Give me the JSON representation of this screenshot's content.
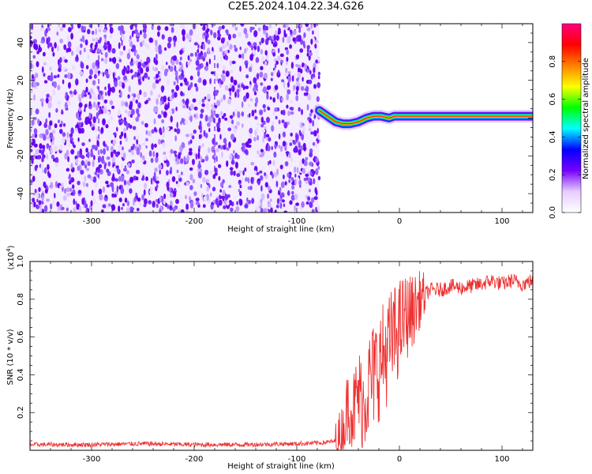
{
  "title": "C2E5.2024.104.22.34.G26",
  "chart_data": [
    {
      "type": "heatmap",
      "xlabel": "Height of straight line (km)",
      "ylabel": "Frequency (Hz)",
      "xlim": [
        -360,
        130
      ],
      "ylim": [
        -50,
        50
      ],
      "xticks": [
        -300,
        -200,
        -100,
        0,
        100
      ],
      "yticks": [
        -40,
        -20,
        0,
        20,
        40
      ],
      "noise_region_x": [
        -360,
        -78
      ],
      "signal_trace": {
        "x": [
          -78,
          -70,
          -62,
          -55,
          -48,
          -40,
          -32,
          -25,
          -18,
          -10,
          -5,
          0,
          20,
          40,
          60,
          80,
          100,
          130
        ],
        "y": [
          4,
          1,
          -2,
          -3,
          -3,
          -2,
          0,
          1,
          1,
          0,
          1,
          1,
          1,
          1,
          1,
          1,
          1,
          1
        ]
      },
      "colorbar": {
        "label": "Normalized spectral amplitude",
        "range": [
          0.0,
          1.0
        ],
        "ticks": [
          "0.0",
          "0.2",
          "0.4",
          "0.6",
          "0.8"
        ],
        "colors": [
          "#ffffff",
          "#e6ccff",
          "#7700ff",
          "#0000ff",
          "#00ffff",
          "#00ff00",
          "#ffff00",
          "#ff8000",
          "#ff0000",
          "#ff0080"
        ]
      }
    },
    {
      "type": "line",
      "xlabel": "Height of straight line (km)",
      "ylabel": "SNR (10 * v/v)",
      "scale_label": "(x10",
      "scale_exp": "4",
      "scale_close": ")",
      "xlim": [
        -360,
        130
      ],
      "ylim": [
        0,
        1.0
      ],
      "xticks": [
        -300,
        -200,
        -100,
        0,
        100
      ],
      "yticks": [
        "0.2",
        "0.4",
        "0.6",
        "0.8",
        "1.0"
      ],
      "line_color": "#ee3333",
      "series": [
        {
          "x": [
            -360,
            -300,
            -250,
            -200,
            -150,
            -100,
            -75,
            -60,
            -55,
            -50,
            -45,
            -40,
            -35,
            -30,
            -25,
            -20,
            -15,
            -10,
            -5,
            0,
            5,
            10,
            15,
            20,
            30,
            40,
            50,
            60,
            70,
            80,
            90,
            100,
            110,
            120,
            130
          ],
          "y": [
            0.03,
            0.03,
            0.035,
            0.03,
            0.03,
            0.035,
            0.04,
            0.05,
            0.1,
            0.25,
            0.2,
            0.3,
            0.25,
            0.35,
            0.4,
            0.45,
            0.5,
            0.55,
            0.6,
            0.65,
            0.7,
            0.72,
            0.75,
            0.8,
            0.85,
            0.85,
            0.87,
            0.86,
            0.87,
            0.88,
            0.9,
            0.88,
            0.9,
            0.88,
            0.9
          ]
        }
      ]
    }
  ]
}
